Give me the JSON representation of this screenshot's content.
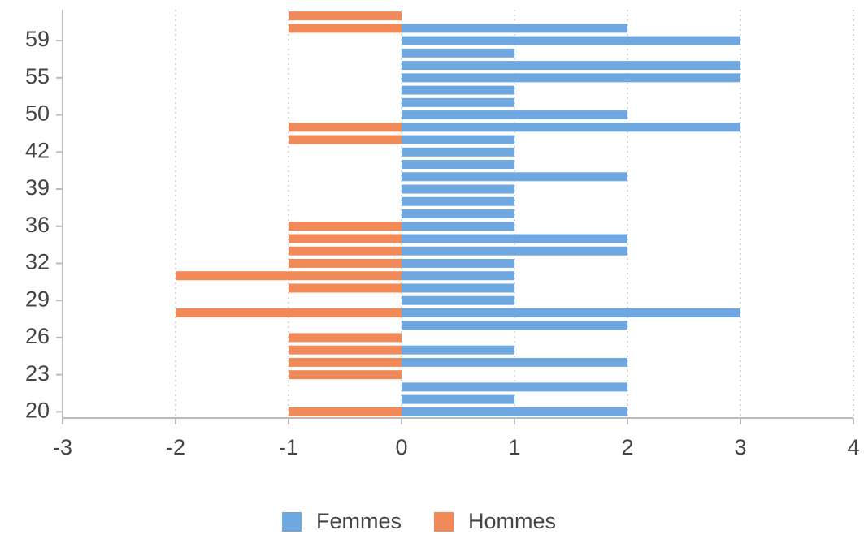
{
  "chart_data": {
    "type": "bar",
    "orientation": "horizontal",
    "categories": [
      20,
      null,
      null,
      23,
      null,
      null,
      26,
      null,
      null,
      29,
      null,
      null,
      32,
      null,
      null,
      36,
      null,
      null,
      39,
      null,
      null,
      42,
      null,
      null,
      50,
      null,
      null,
      55,
      null,
      null,
      59,
      null,
      null
    ],
    "series": [
      {
        "name": "Femmes",
        "color": "#6fa8e0",
        "values": [
          2,
          1,
          2,
          null,
          2,
          1,
          null,
          2,
          3,
          1,
          1,
          1,
          1,
          2,
          2,
          1,
          1,
          1,
          1,
          2,
          1,
          1,
          1,
          3,
          2,
          1,
          1,
          3,
          3,
          1,
          3,
          2,
          null
        ]
      },
      {
        "name": "Hommes",
        "color": "#f08a58",
        "values": [
          -1,
          null,
          null,
          -1,
          -1,
          -1,
          -1,
          null,
          -2,
          null,
          -1,
          -2,
          -1,
          -1,
          -1,
          -1,
          null,
          null,
          null,
          null,
          null,
          null,
          -1,
          -1,
          null,
          null,
          null,
          null,
          null,
          null,
          null,
          -1,
          -1
        ]
      }
    ],
    "xlim": [
      -3,
      4
    ],
    "xticks": [
      -3,
      -2,
      -1,
      0,
      1,
      2,
      3,
      4
    ],
    "grid": true,
    "legend": "bottom"
  }
}
